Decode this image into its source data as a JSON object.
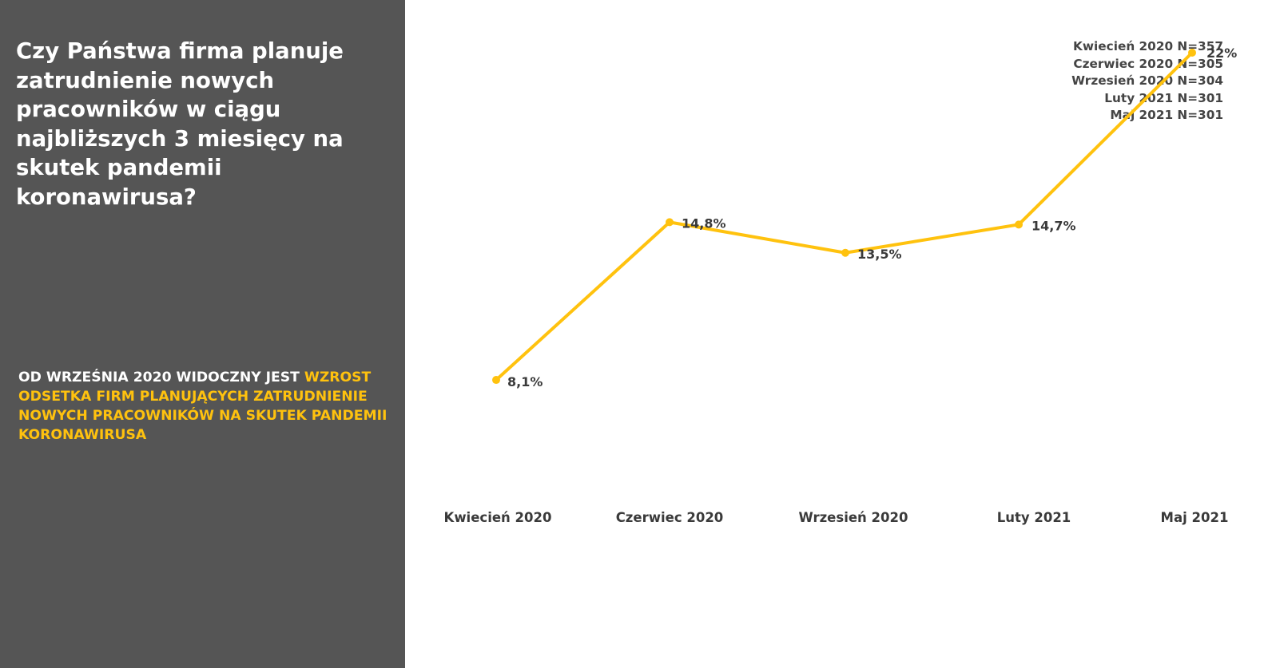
{
  "question": "Czy Państwa firma planuje zatrudnienie nowych pracowników w ciągu najbliższych 3 miesięcy na skutek pandemii koronawirusa?",
  "insight": {
    "prefix": "OD WRZEŚNIA 2020 WIDOCZNY JEST ",
    "highlight": "WZROST ODSETKA FIRM PLANUJĄCYCH ZATRUDNIENIE NOWYCH PRACOWNIKÓW NA SKUTEK PANDEMII KORONAWIRUSA"
  },
  "sample_sizes": [
    "Kwiecień 2020 N=357",
    "Czerwiec 2020 N=305",
    "Wrzesień 2020 N=304",
    "Luty 2021 N=301",
    "Maj 2021 N=301"
  ],
  "colors": {
    "panel": "#555555",
    "accent": "#FFC20E",
    "text_dark": "#3A3A3A"
  },
  "chart_data": {
    "type": "line",
    "title": "",
    "xlabel": "",
    "ylabel": "",
    "grid": false,
    "ylim": [
      0,
      25
    ],
    "categories": [
      "Kwiecień 2020",
      "Czerwiec 2020",
      "Wrzesień 2020",
      "Luty 2021",
      "Maj 2021"
    ],
    "series": [
      {
        "values": [
          8.1,
          14.8,
          13.5,
          14.7,
          22
        ],
        "data_labels": [
          "8,1%",
          "14,8%",
          "13,5%",
          "14,7%",
          "22%"
        ]
      }
    ]
  }
}
